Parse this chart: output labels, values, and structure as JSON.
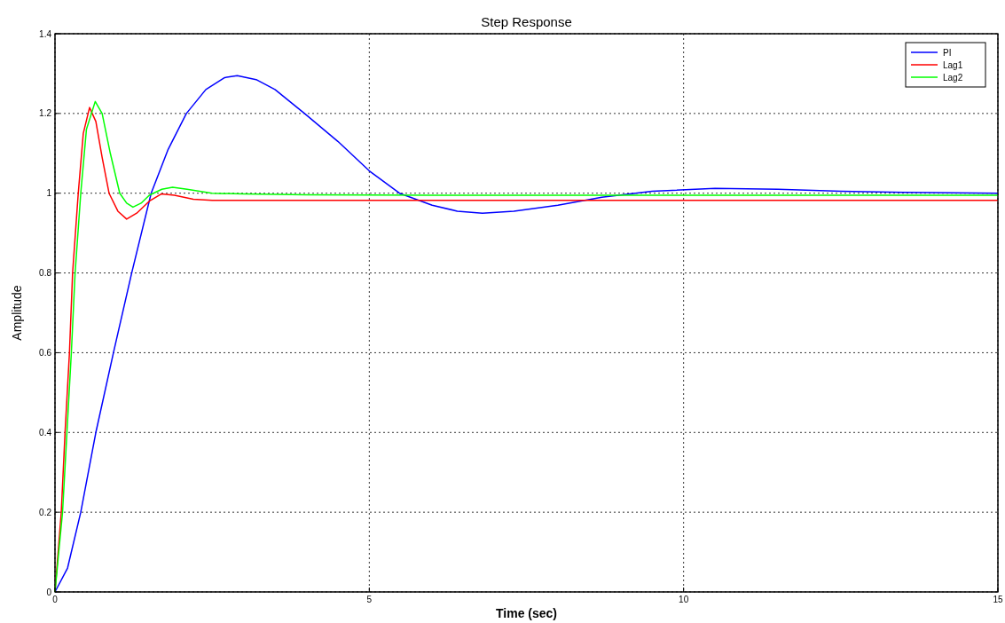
{
  "chart_data": {
    "type": "line",
    "title": "Step Response",
    "xlabel": "Time (sec)",
    "ylabel": "Amplitude",
    "xlim": [
      0,
      15
    ],
    "xticks": [
      0,
      5,
      10,
      15
    ],
    "ylim": [
      0,
      1.4
    ],
    "yticks": [
      0,
      0.2,
      0.4,
      0.6,
      0.8,
      1,
      1.2,
      1.4
    ],
    "grid": true,
    "legend": "top right",
    "line_style": "solid",
    "marker": "none",
    "series": [
      {
        "name": "PI",
        "color": "#0000ff",
        "x": [
          0,
          0.2,
          0.41,
          0.65,
          0.93,
          1.22,
          1.53,
          1.8,
          2.09,
          2.4,
          2.7,
          2.9,
          3.2,
          3.5,
          3.97,
          4.5,
          5,
          5.48,
          6,
          6.4,
          6.8,
          7.3,
          8,
          8.7,
          9.5,
          10.5,
          11.5,
          12.5,
          13.5,
          15
        ],
        "values": [
          0,
          0.06,
          0.2,
          0.4,
          0.6,
          0.8,
          1,
          1.11,
          1.2,
          1.26,
          1.29,
          1.295,
          1.285,
          1.26,
          1.2,
          1.13,
          1.056,
          1,
          0.97,
          0.955,
          0.95,
          0.955,
          0.97,
          0.99,
          1.005,
          1.012,
          1.01,
          1.005,
          1.002,
          1
        ]
      },
      {
        "name": "Lag1",
        "color": "#ff0000",
        "x": [
          0,
          0.1,
          0.16,
          0.23,
          0.28,
          0.37,
          0.45,
          0.55,
          0.65,
          0.75,
          0.86,
          1,
          1.14,
          1.3,
          1.5,
          1.69,
          1.9,
          2.2,
          2.5,
          4,
          6,
          8,
          10,
          12,
          15
        ],
        "values": [
          0,
          0.2,
          0.4,
          0.6,
          0.8,
          1,
          1.15,
          1.215,
          1.18,
          1.09,
          1,
          0.955,
          0.935,
          0.95,
          0.98,
          0.998,
          0.995,
          0.985,
          0.982,
          0.982,
          0.982,
          0.982,
          0.982,
          0.982,
          0.982
        ]
      },
      {
        "name": "Lag2",
        "color": "#00ff00",
        "x": [
          0,
          0.12,
          0.19,
          0.26,
          0.32,
          0.41,
          0.5,
          0.64,
          0.75,
          0.88,
          1.03,
          1.14,
          1.24,
          1.37,
          1.5,
          1.7,
          1.87,
          2.1,
          2.5,
          3,
          4,
          6,
          8,
          10,
          12,
          15
        ],
        "values": [
          0,
          0.2,
          0.4,
          0.6,
          0.8,
          1,
          1.16,
          1.23,
          1.2,
          1.1,
          1,
          0.975,
          0.965,
          0.975,
          0.995,
          1.01,
          1.015,
          1.01,
          1,
          0.998,
          0.996,
          0.995,
          0.995,
          0.995,
          0.995,
          0.995
        ]
      }
    ]
  }
}
